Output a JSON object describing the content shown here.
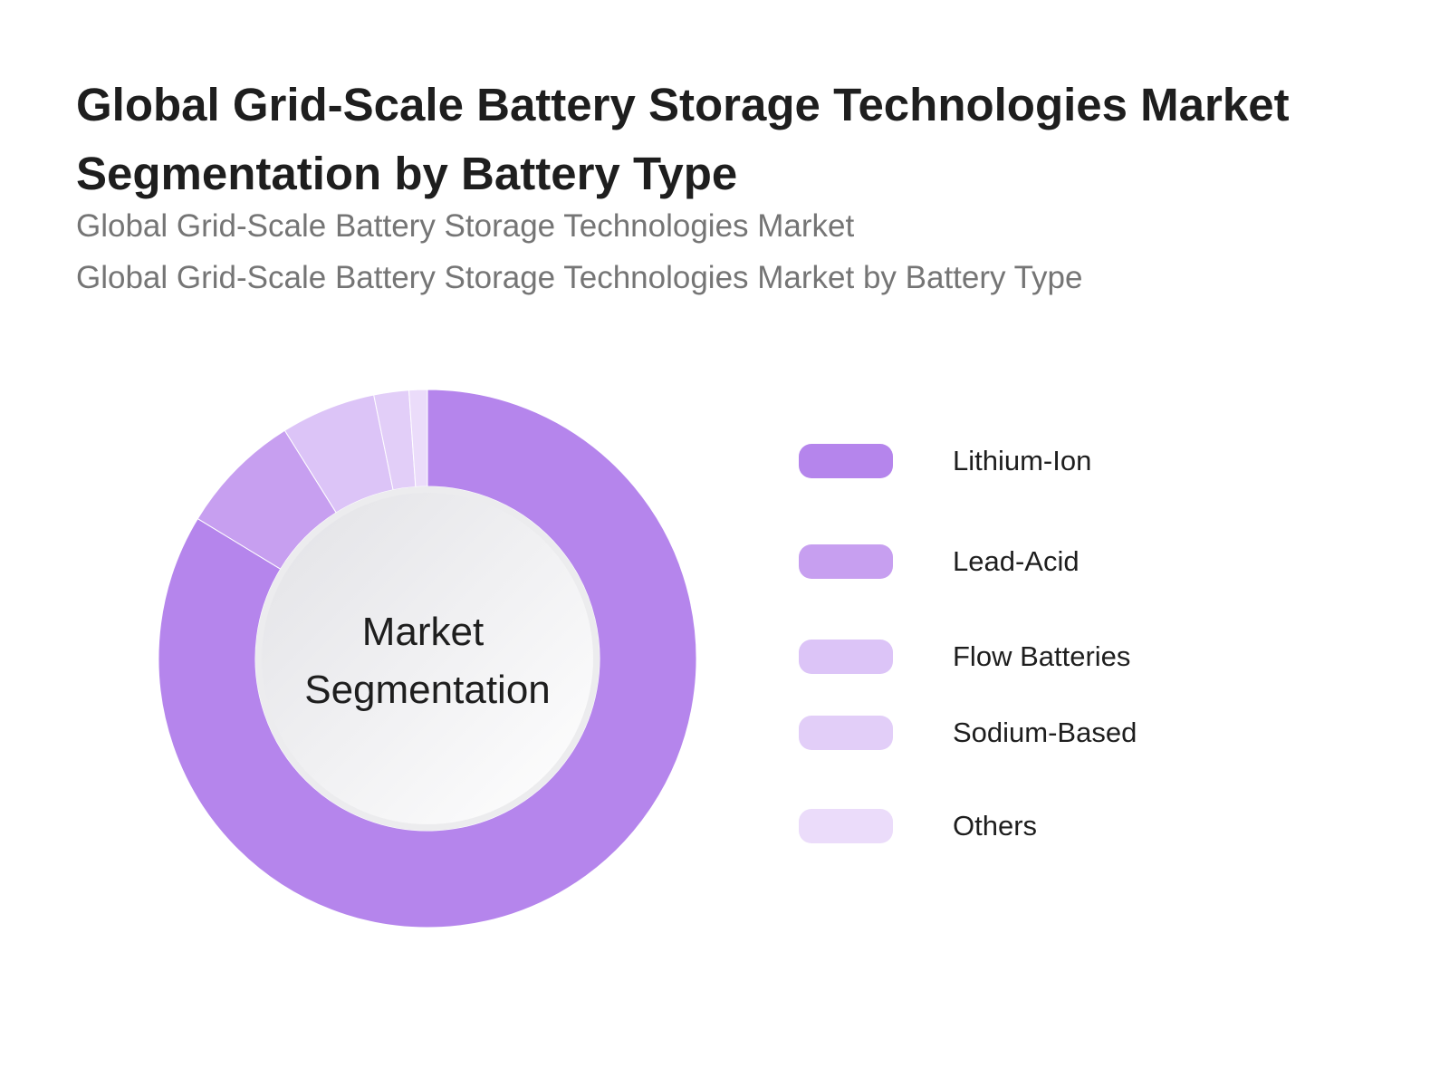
{
  "title": "Global Grid-Scale Battery Storage Technologies Market Segmentation by Battery Type",
  "subtitles": [
    "Global Grid-Scale Battery Storage Technologies Market",
    "Global Grid-Scale Battery Storage Technologies Market by Battery Type"
  ],
  "center_label": [
    "Market",
    "Segmentation"
  ],
  "chart_data": {
    "type": "pie",
    "title": "Global Grid-Scale Battery Storage Technologies Market Segmentation by Battery Type",
    "center_label": "Market Segmentation",
    "legend_position": "right",
    "categories": [
      "Lithium-Ion",
      "Lead-Acid",
      "Flow Batteries",
      "Sodium-Based",
      "Others"
    ],
    "values": [
      83.7,
      7.4,
      5.7,
      2.1,
      1.1
    ],
    "colors": [
      "#b585ec",
      "#c79ff0",
      "#dcc4f7",
      "#e2cef8",
      "#ebdcfa"
    ]
  }
}
